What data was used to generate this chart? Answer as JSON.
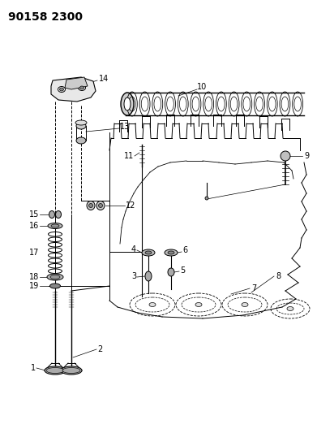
{
  "title": "90158 2300",
  "bg_color": "#ffffff",
  "line_color": "#000000",
  "title_fontsize": 10,
  "label_fontsize": 7,
  "fig_width": 3.91,
  "fig_height": 5.33,
  "dpi": 100
}
